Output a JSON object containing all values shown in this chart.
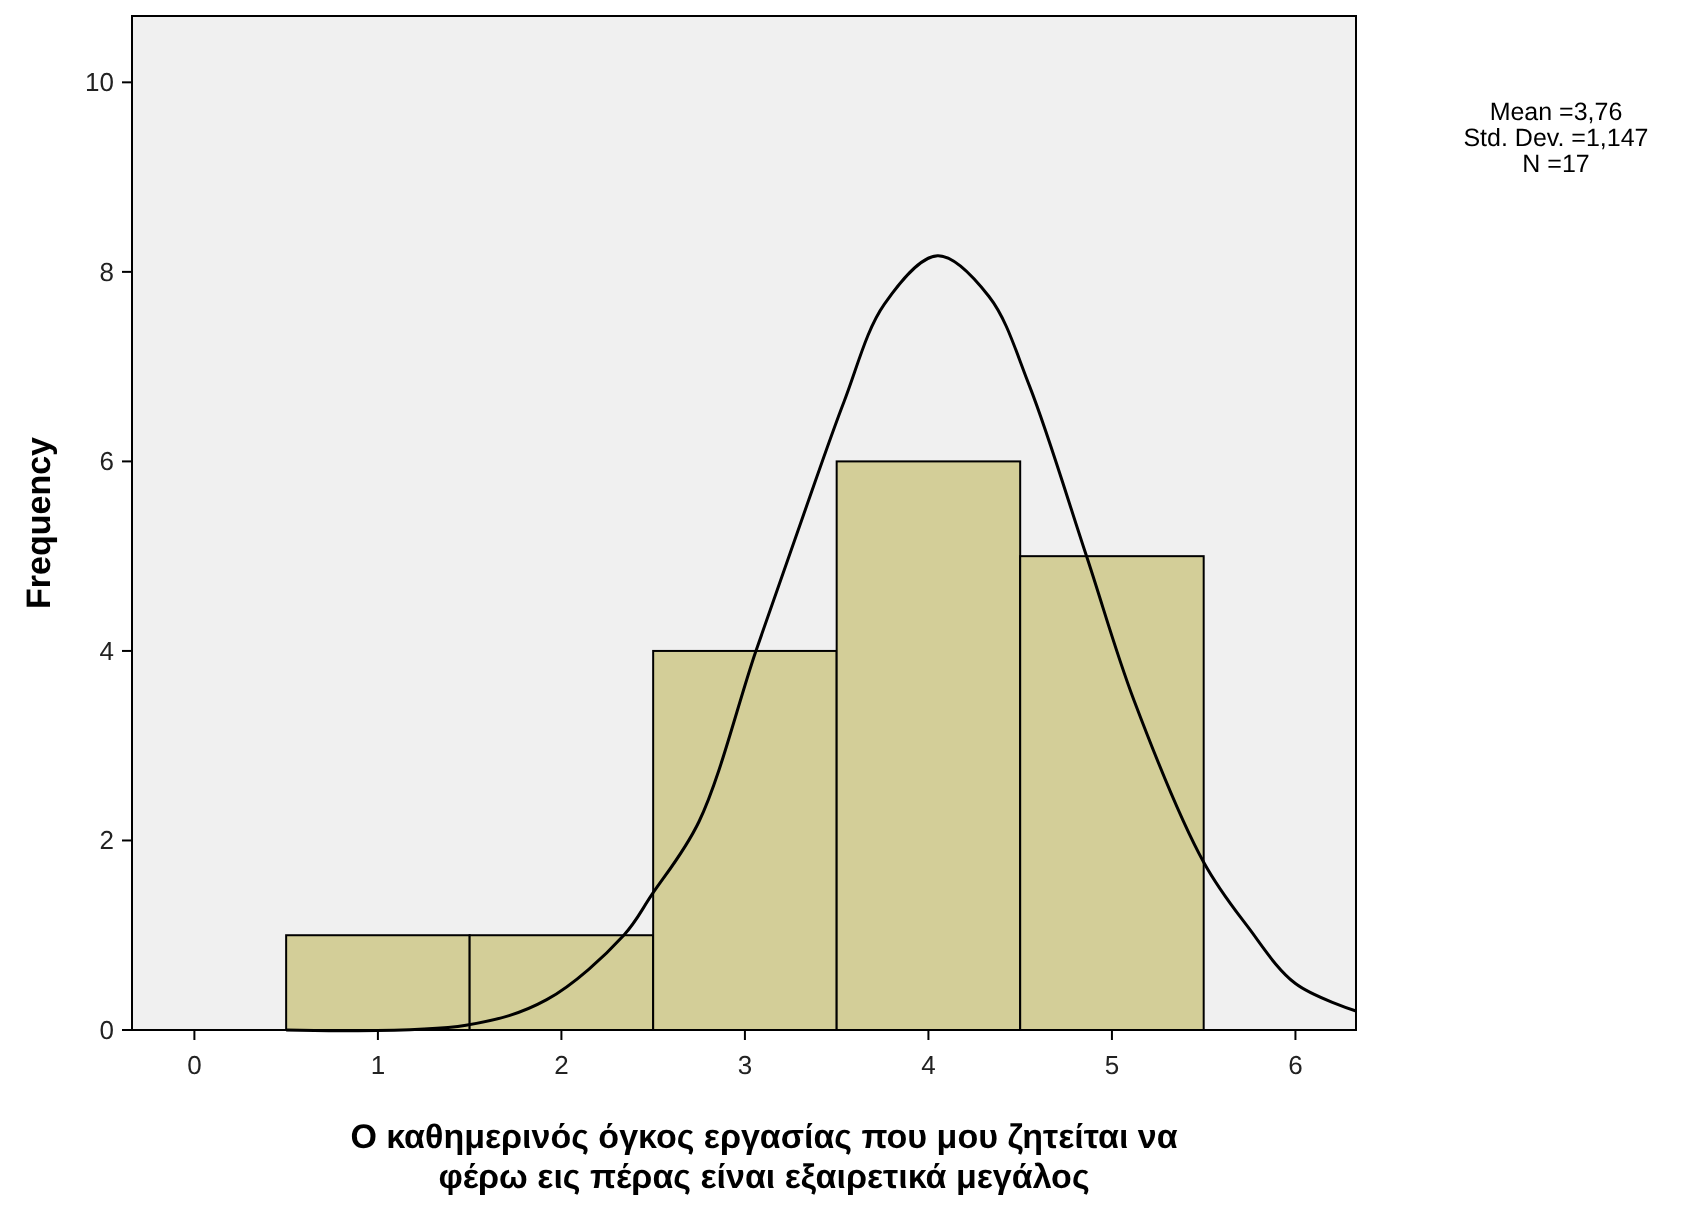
{
  "chart_data": {
    "type": "histogram",
    "xlabel": "Ο καθημερινός όγκος εργασίας που μου ζητείται να φέρω εις πέρας είναι εξαιρετικά μεγάλος",
    "ylabel": "Frequency",
    "bins": [
      0.5,
      1.5,
      2.5,
      3.5,
      4.5,
      5.5
    ],
    "values": [
      1,
      1,
      4,
      6,
      5
    ],
    "color": "#d3ce98",
    "series": [
      {
        "type": "line",
        "color": "#000000",
        "x": [
          0.5,
          1.48,
          1.92,
          2.34,
          2.49,
          2.75,
          3.06,
          3.32,
          3.54,
          3.76,
          4.05,
          4.33,
          4.55,
          4.86,
          5.12,
          5.5,
          5.74,
          6.0,
          6.33
        ],
        "values": [
          0,
          0.05,
          0.32,
          1.0,
          1.42,
          2.2,
          4.0,
          5.44,
          6.63,
          7.66,
          8.17,
          7.74,
          6.8,
          5.01,
          3.48,
          1.77,
          1.09,
          0.49,
          0.2
        ]
      }
    ],
    "xlim": [
      -0.34,
      6.33
    ],
    "ylim": [
      0,
      10.7
    ],
    "xticks": [
      0,
      1,
      2,
      3,
      4,
      5,
      6
    ],
    "yticks": [
      0,
      2,
      4,
      6,
      8,
      10
    ],
    "grid": false,
    "annotations": [
      "Mean =3,76",
      "Std. Dev. =1,147",
      "N =17"
    ]
  }
}
